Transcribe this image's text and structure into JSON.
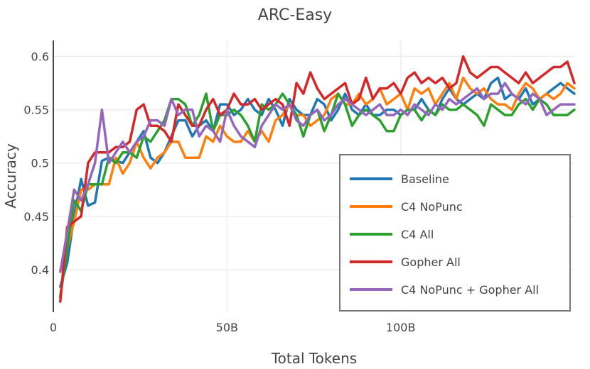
{
  "chart_data": {
    "type": "line",
    "title": "ARC-Easy",
    "xlabel": "Total Tokens",
    "ylabel": "Accuracy",
    "xlim": [
      0,
      150
    ],
    "ylim": [
      0.36,
      0.615
    ],
    "x_unit": "B",
    "x_ticks": [
      {
        "value": 0,
        "label": "0"
      },
      {
        "value": 50,
        "label": "50B"
      },
      {
        "value": 100,
        "label": "100B"
      }
    ],
    "y_ticks": [
      {
        "value": 0.4,
        "label": "0.4"
      },
      {
        "value": 0.45,
        "label": "0.45"
      },
      {
        "value": 0.5,
        "label": "0.5"
      },
      {
        "value": 0.55,
        "label": "0.55"
      },
      {
        "value": 0.6,
        "label": "0.6"
      }
    ],
    "grid": true,
    "legend_position": "bottom-right",
    "x": [
      2,
      4,
      6,
      8,
      10,
      12,
      14,
      16,
      18,
      20,
      22,
      24,
      26,
      28,
      30,
      32,
      34,
      36,
      38,
      40,
      42,
      44,
      46,
      48,
      50,
      52,
      54,
      56,
      58,
      60,
      62,
      64,
      66,
      68,
      70,
      72,
      74,
      76,
      78,
      80,
      82,
      84,
      86,
      88,
      90,
      92,
      94,
      96,
      98,
      100,
      102,
      104,
      106,
      108,
      110,
      112,
      114,
      116,
      118,
      120,
      122,
      124,
      126,
      128,
      130,
      132,
      134,
      136,
      138,
      140,
      142,
      144,
      146,
      148,
      150
    ],
    "series": [
      {
        "name": "Baseline",
        "color": "#1f77b4",
        "values": [
          0.384,
          0.406,
          0.45,
          0.485,
          0.46,
          0.463,
          0.502,
          0.505,
          0.502,
          0.5,
          0.51,
          0.52,
          0.53,
          0.505,
          0.5,
          0.51,
          0.525,
          0.54,
          0.54,
          0.525,
          0.535,
          0.54,
          0.53,
          0.555,
          0.555,
          0.545,
          0.55,
          0.56,
          0.55,
          0.545,
          0.56,
          0.55,
          0.535,
          0.56,
          0.55,
          0.545,
          0.545,
          0.56,
          0.555,
          0.54,
          0.55,
          0.565,
          0.55,
          0.545,
          0.555,
          0.545,
          0.545,
          0.55,
          0.55,
          0.545,
          0.55,
          0.55,
          0.56,
          0.55,
          0.545,
          0.56,
          0.57,
          0.56,
          0.555,
          0.56,
          0.565,
          0.56,
          0.575,
          0.58,
          0.56,
          0.565,
          0.56,
          0.57,
          0.555,
          0.56,
          0.565,
          0.57,
          0.575,
          0.57,
          0.565
        ]
      },
      {
        "name": "C4 NoPunc",
        "color": "#ff7f0e",
        "values": [
          0.375,
          0.42,
          0.445,
          0.475,
          0.475,
          0.48,
          0.48,
          0.48,
          0.505,
          0.49,
          0.5,
          0.52,
          0.505,
          0.495,
          0.505,
          0.51,
          0.52,
          0.52,
          0.505,
          0.505,
          0.505,
          0.525,
          0.52,
          0.535,
          0.525,
          0.52,
          0.52,
          0.53,
          0.52,
          0.53,
          0.52,
          0.54,
          0.545,
          0.555,
          0.545,
          0.545,
          0.535,
          0.54,
          0.545,
          0.56,
          0.565,
          0.555,
          0.555,
          0.565,
          0.555,
          0.56,
          0.57,
          0.555,
          0.56,
          0.565,
          0.55,
          0.57,
          0.565,
          0.57,
          0.555,
          0.565,
          0.575,
          0.56,
          0.58,
          0.57,
          0.565,
          0.57,
          0.56,
          0.555,
          0.555,
          0.55,
          0.565,
          0.575,
          0.57,
          0.56,
          0.565,
          0.56,
          0.565,
          0.575,
          0.57
        ]
      },
      {
        "name": "C4 All",
        "color": "#2ca02c",
        "values": [
          0.374,
          0.42,
          0.465,
          0.455,
          0.48,
          0.48,
          0.48,
          0.505,
          0.5,
          0.51,
          0.51,
          0.505,
          0.525,
          0.52,
          0.53,
          0.54,
          0.56,
          0.56,
          0.555,
          0.535,
          0.545,
          0.565,
          0.53,
          0.545,
          0.545,
          0.55,
          0.545,
          0.535,
          0.52,
          0.555,
          0.55,
          0.555,
          0.565,
          0.555,
          0.545,
          0.525,
          0.545,
          0.55,
          0.53,
          0.545,
          0.565,
          0.555,
          0.535,
          0.545,
          0.55,
          0.545,
          0.54,
          0.53,
          0.53,
          0.545,
          0.55,
          0.55,
          0.54,
          0.55,
          0.545,
          0.555,
          0.55,
          0.55,
          0.555,
          0.55,
          0.545,
          0.535,
          0.555,
          0.55,
          0.545,
          0.545,
          0.555,
          0.56,
          0.55,
          0.56,
          0.555,
          0.545,
          0.545,
          0.545,
          0.55
        ]
      },
      {
        "name": "Gopher All",
        "color": "#d62728",
        "values": [
          0.37,
          0.44,
          0.445,
          0.45,
          0.5,
          0.51,
          0.51,
          0.51,
          0.515,
          0.515,
          0.52,
          0.55,
          0.555,
          0.535,
          0.535,
          0.53,
          0.52,
          0.555,
          0.545,
          0.535,
          0.535,
          0.55,
          0.56,
          0.545,
          0.55,
          0.565,
          0.555,
          0.555,
          0.56,
          0.55,
          0.555,
          0.56,
          0.555,
          0.535,
          0.575,
          0.565,
          0.585,
          0.57,
          0.56,
          0.565,
          0.57,
          0.575,
          0.555,
          0.56,
          0.58,
          0.56,
          0.57,
          0.57,
          0.575,
          0.565,
          0.58,
          0.585,
          0.575,
          0.58,
          0.575,
          0.58,
          0.57,
          0.575,
          0.6,
          0.585,
          0.58,
          0.585,
          0.59,
          0.59,
          0.585,
          0.58,
          0.575,
          0.585,
          0.575,
          0.58,
          0.585,
          0.59,
          0.59,
          0.595,
          0.575
        ]
      },
      {
        "name": "C4 NoPunc + Gopher All",
        "color": "#9467bd",
        "values": [
          0.398,
          0.435,
          0.475,
          0.465,
          0.48,
          0.5,
          0.55,
          0.5,
          0.51,
          0.52,
          0.51,
          0.52,
          0.525,
          0.54,
          0.54,
          0.535,
          0.56,
          0.545,
          0.55,
          0.55,
          0.525,
          0.535,
          0.53,
          0.52,
          0.55,
          0.535,
          0.525,
          0.52,
          0.515,
          0.535,
          0.545,
          0.555,
          0.55,
          0.555,
          0.54,
          0.535,
          0.545,
          0.55,
          0.54,
          0.545,
          0.555,
          0.56,
          0.555,
          0.55,
          0.545,
          0.55,
          0.555,
          0.545,
          0.545,
          0.55,
          0.545,
          0.555,
          0.55,
          0.545,
          0.555,
          0.55,
          0.56,
          0.555,
          0.56,
          0.565,
          0.57,
          0.56,
          0.565,
          0.565,
          0.575,
          0.565,
          0.56,
          0.555,
          0.565,
          0.56,
          0.545,
          0.55,
          0.555,
          0.555,
          0.555
        ]
      }
    ]
  }
}
